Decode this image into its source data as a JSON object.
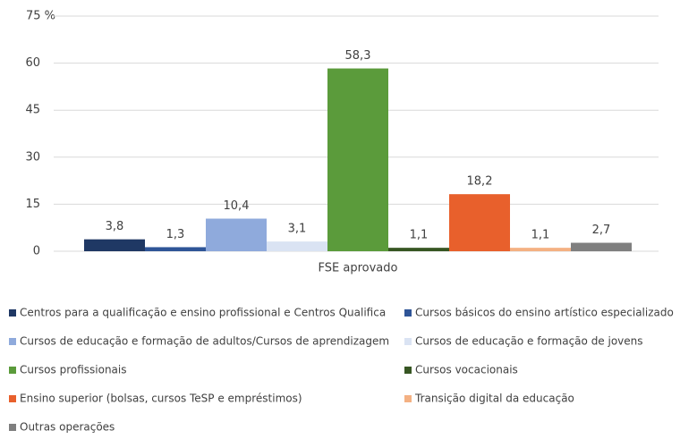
{
  "chart_data": {
    "type": "bar",
    "categories": [
      "FSE aprovado"
    ],
    "ylim": [
      0,
      75
    ],
    "yticks": [
      0,
      15,
      30,
      45,
      60,
      {
        "value": 75,
        "label": "75 %"
      }
    ],
    "grid": true,
    "legend": "bottom",
    "series": [
      {
        "name": "Centros para a qualificação e ensino profissional e Centros Qualifica",
        "color": "#1f3864",
        "values": [
          3.8
        ],
        "value_labels": [
          "3,8"
        ]
      },
      {
        "name": "Cursos básicos do ensino artístico especializado",
        "color": "#2f5597",
        "values": [
          1.3
        ],
        "value_labels": [
          "1,3"
        ]
      },
      {
        "name": "Cursos de educação e formação de adultos/Cursos de aprendizagem",
        "color": "#8faadc",
        "values": [
          10.4
        ],
        "value_labels": [
          "10,4"
        ]
      },
      {
        "name": "Cursos de educação e formação de jovens",
        "color": "#dae3f3",
        "values": [
          3.1
        ],
        "value_labels": [
          "3,1"
        ]
      },
      {
        "name": "Cursos profissionais",
        "color": "#5b9b3b",
        "values": [
          58.3
        ],
        "value_labels": [
          "58,3"
        ]
      },
      {
        "name": "Cursos vocacionais",
        "color": "#375623",
        "values": [
          1.1
        ],
        "value_labels": [
          "1,1"
        ]
      },
      {
        "name": "Ensino superior (bolsas, cursos TeSP e empréstimos)",
        "color": "#e8602c",
        "values": [
          18.2
        ],
        "value_labels": [
          "18,2"
        ]
      },
      {
        "name": "Transição digital da educação",
        "color": "#f4b183",
        "values": [
          1.1
        ],
        "value_labels": [
          "1,1"
        ]
      },
      {
        "name": "Outras operações",
        "color": "#7f7f7f",
        "values": [
          2.7
        ],
        "value_labels": [
          "2,7"
        ]
      }
    ]
  }
}
